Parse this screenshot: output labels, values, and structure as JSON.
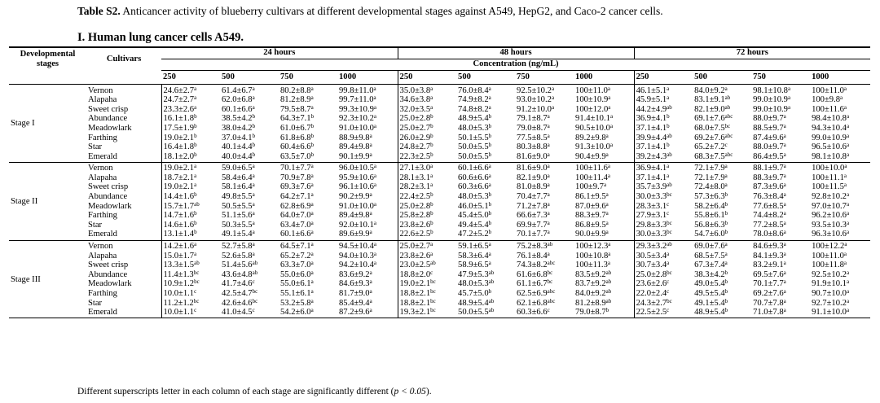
{
  "caption": {
    "label": "Table S2.",
    "text": " Anticancer activity of blueberry cultivars at different developmental stages against A549, HepG2, and Caco-2 cancer cells."
  },
  "section_title": "I. Human lung cancer cells A549.",
  "headers": {
    "developmental_stages": "Developmental stages",
    "cultivars": "Cultivars",
    "times": [
      "24 hours",
      "48 hours",
      "72 hours"
    ],
    "concentration": "Concentration (ng/mL)",
    "doses": [
      "250",
      "500",
      "750",
      "1000",
      "250",
      "500",
      "750",
      "1000",
      "250",
      "500",
      "750",
      "1000"
    ]
  },
  "stages": [
    {
      "name": "Stage I",
      "rows": [
        {
          "cultivar": "Vernon",
          "values": [
            "24.6±2.7^a",
            "61.4±6.7^a",
            "80.2±8.8^a",
            "99.8±11.0^a",
            "35.0±3.8^a",
            "76.0±8.4^a",
            "92.5±10.2^a",
            "100±11.0^a",
            "46.1±5.1^a",
            "84.0±9.2^a",
            "98.1±10.8^a",
            "100±11.0^a"
          ]
        },
        {
          "cultivar": "Alapaha",
          "values": [
            "24.7±2.7^a",
            "62.0±6.8^a",
            "81.2±8.9^a",
            "99.7±11.0^a",
            "34.6±3.8^a",
            "74.9±8.2^a",
            "93.0±10.2^a",
            "100±10.9^a",
            "45.9±5.1^a",
            "83.1±9.1^ab",
            "99.0±10.9^a",
            "100±9.8^a"
          ]
        },
        {
          "cultivar": "Sweet crisp",
          "values": [
            "23.3±2.6^a",
            "60.1±6.6^a",
            "79.5±8.7^a",
            "99.3±10.9^a",
            "32.0±3.5^a",
            "74.8±8.2^a",
            "91.2±10.0^a",
            "100±12.0^a",
            "44.2±4.9^ab",
            "82.1±9.0^ab",
            "99.0±10.9^a",
            "100±11.6^a"
          ]
        },
        {
          "cultivar": "Abundance",
          "values": [
            "16.1±1.8^b",
            "38.5±4.2^b",
            "64.3±7.1^b",
            "92.3±10.2^a",
            "25.0±2.8^b",
            "48.9±5.4^b",
            "79.1±8.7^a",
            "91.4±10.1^a",
            "36.9±4.1^b",
            "69.1±7.6^abc",
            "88.0±9.7^a",
            "98.4±10.8^a"
          ]
        },
        {
          "cultivar": "Meadowlark",
          "values": [
            "17.5±1.9^b",
            "38.0±4.2^b",
            "61.0±6.7^b",
            "91.0±10.0^a",
            "25.0±2.7^b",
            "48.0±5.3^b",
            "79.0±8.7^a",
            "90.5±10.0^a",
            "37.1±4.1^b",
            "68.0±7.5^bc",
            "88.5±9.7^a",
            "94.3±10.4^a"
          ]
        },
        {
          "cultivar": "Farthing",
          "values": [
            "19.0±2.1^b",
            "37.0±4.1^b",
            "61.8±6.8^b",
            "88.9±9.8^a",
            "26.0±2.9^b",
            "50.1±5.5^b",
            "77.5±8.5^a",
            "89.2±9.8^a",
            "39.9±4.4^ab",
            "69.2±7.6^abc",
            "87.4±9.6^a",
            "99.0±10.9^a"
          ]
        },
        {
          "cultivar": "Star",
          "values": [
            "16.4±1.8^b",
            "40.1±4.4^b",
            "60.4±6.6^b",
            "89.4±9.8^a",
            "24.8±2.7^b",
            "50.0±5.5^b",
            "80.3±8.8^a",
            "91.3±10.0^a",
            "37.1±4.1^b",
            "65.2±7.2^c",
            "88.0±9.7^a",
            "96.5±10.6^a"
          ]
        },
        {
          "cultivar": "Emerald",
          "values": [
            "18.1±2.0^b",
            "40.0±4.4^b",
            "63.5±7.0^b",
            "90.1±9.9^a",
            "22.3±2.5^b",
            "50.0±5.5^b",
            "81.6±9.0^a",
            "90.4±9.9^a",
            "39.2±4.3^ab",
            "68.3±7.5^abc",
            "86.4±9.5^a",
            "98.1±10.8^a"
          ]
        }
      ]
    },
    {
      "name": "Stage II",
      "rows": [
        {
          "cultivar": "Vernon",
          "values": [
            "19.0±2.1^a",
            "59.0±6.5^a",
            "70.1±7.7^a",
            "96.0±10.5^a",
            "27.1±3.0^a",
            "60.1±6.6^a",
            "81.6±9.0^a",
            "100±11.6^a",
            "36.9±4.1^a",
            "72.1±7.9^a",
            "88.1±9.7^a",
            "100±10.0^a"
          ]
        },
        {
          "cultivar": "Alapaha",
          "values": [
            "18.7±2.1^a",
            "58.4±6.4^a",
            "70.9±7.8^a",
            "95.9±10.6^a",
            "28.1±3.1^a",
            "60.6±6.6^a",
            "82.1±9.0^a",
            "100±11.4^a",
            "37.1±4.1^a",
            "72.1±7.9^a",
            "88.3±9.7^a",
            "100±11.1^a"
          ]
        },
        {
          "cultivar": "Sweet crisp",
          "values": [
            "19.0±2.1^a",
            "58.1±6.4^a",
            "69.3±7.6^a",
            "96.1±10.6^a",
            "28.2±3.1^a",
            "60.3±6.6^a",
            "81.0±8.9^a",
            "100±9.7^a",
            "35.7±3.9^ab",
            "72.4±8.0^a",
            "87.3±9.6^a",
            "100±11.5^a"
          ]
        },
        {
          "cultivar": "Abundance",
          "values": [
            "14.4±1.6^b",
            "49.8±5.5^a",
            "64.2±7.1^a",
            "90.2±9.9^a",
            "22.4±2.5^b",
            "48.0±5.3^b",
            "70.4±7.7^a",
            "86.1±9.5^a",
            "30.0±3.3^bc",
            "57.3±6.3^b",
            "76.3±8.4^a",
            "92.8±10.2^a"
          ]
        },
        {
          "cultivar": "Meadowlark",
          "values": [
            "15.7±1.7^ab",
            "50.5±5.5^a",
            "62.8±6.9^a",
            "91.0±10.0^a",
            "25.0±2.8^b",
            "46.0±5.1^b",
            "71.2±7.8^a",
            "87.0±9.6^a",
            "28.3±3.1^c",
            "58.2±6.4^b",
            "77.6±8.5^a",
            "97.0±10.7^a"
          ]
        },
        {
          "cultivar": "Farthing",
          "values": [
            "14.7±1.6^b",
            "51.1±5.6^a",
            "64.0±7.0^a",
            "89.4±9.8^a",
            "25.8±2.8^b",
            "45.4±5.0^b",
            "66.6±7.3^a",
            "88.3±9.7^a",
            "27.9±3.1^c",
            "55.8±6.1^b",
            "74.4±8.2^a",
            "96.2±10.6^a"
          ]
        },
        {
          "cultivar": "Star",
          "values": [
            "14.6±1.6^b",
            "50.3±5.5^a",
            "63.4±7.0^a",
            "92.0±10.1^a",
            "23.8±2.6^b",
            "49.4±5.4^b",
            "69.9±7.7^a",
            "86.8±9.5^a",
            "29.8±3.3^bc",
            "56.8±6.3^b",
            "77.2±8.5^a",
            "93.5±10.3^a"
          ]
        },
        {
          "cultivar": "Emerald",
          "values": [
            "13.1±1.4^b",
            "49.1±5.4^a",
            "60.1±6.6^a",
            "89.6±9.9^a",
            "22.6±2.5^b",
            "47.2±5.2^b",
            "70.1±7.7^a",
            "90.0±9.9^a",
            "30.0±3.3^bc",
            "54.7±6.0^b",
            "78.0±8.6^a",
            "96.3±10.6^a"
          ]
        }
      ]
    },
    {
      "name": "Stage III",
      "rows": [
        {
          "cultivar": "Vernon",
          "values": [
            "14.2±1.6^a",
            "52.7±5.8^a",
            "64.5±7.1^a",
            "94.5±10.4^a",
            "25.0±2.7^a",
            "59.1±6.5^a",
            "75.2±8.3^ab",
            "100±12.3^a",
            "29.3±3.2^ab",
            "69.0±7.6^a",
            "84.6±9.3^a",
            "100±12.2^a"
          ]
        },
        {
          "cultivar": "Alapaha",
          "values": [
            "15.0±1.7^a",
            "52.6±5.8^a",
            "65.2±7.2^a",
            "94.0±10.3^a",
            "23.8±2.6^a",
            "58.3±6.4^a",
            "76.1±8.4^a",
            "100±10.8^a",
            "30.5±3.4^a",
            "68.5±7.5^a",
            "84.1±9.3^a",
            "100±11.0^a"
          ]
        },
        {
          "cultivar": "Sweet crisp",
          "values": [
            "13.3±1.5^ab",
            "51.4±5.6^ab",
            "63.3±7.0^a",
            "94.2±10.4^a",
            "23.0±2.5^ab",
            "58.9±6.5^a",
            "74.3±8.2^abc",
            "100±11.3^a",
            "30.7±3.4^a",
            "67.3±7.4^a",
            "83.2±9.1^a",
            "100±11.8^a"
          ]
        },
        {
          "cultivar": "Abundance",
          "values": [
            "11.4±1.3^bc",
            "43.6±4.8^ab",
            "55.0±6.0^a",
            "83.6±9.2^a",
            "18.8±2.0^c",
            "47.9±5.3^ab",
            "61.6±6.8^bc",
            "83.5±9.2^ab",
            "25.0±2.8^bc",
            "38.3±4.2^b",
            "69.5±7.6^a",
            "92.5±10.2^a"
          ]
        },
        {
          "cultivar": "Meadowlark",
          "values": [
            "10.9±1.2^bc",
            "41.7±4.6^c",
            "55.0±6.1^a",
            "84.6±9.3^a",
            "19.0±2.1^bc",
            "48.0±5.3^ab",
            "61.1±6.7^bc",
            "83.7±9.2^ab",
            "23.6±2.6^c",
            "49.0±5.4^b",
            "70.1±7.7^a",
            "91.9±10.1^a"
          ]
        },
        {
          "cultivar": "Farthing",
          "values": [
            "10.0±1.1^c",
            "42.5±4.7^bc",
            "55.1±6.1^a",
            "81.7±9.0^a",
            "18.8±2.1^bc",
            "45.7±5.0^b",
            "62.5±6.9^abc",
            "84.0±9.2^ab",
            "22.0±2.4^c",
            "49.5±5.4^b",
            "69.2±7.6^a",
            "90.7±10.0^a"
          ]
        },
        {
          "cultivar": "Star",
          "values": [
            "11.2±1.2^bc",
            "42.6±4.6^bc",
            "53.2±5.8^a",
            "85.4±9.4^a",
            "18.8±2.1^bc",
            "48.9±5.4^ab",
            "62.1±6.8^abc",
            "81.2±8.9^ab",
            "24.3±2.7^bc",
            "49.1±5.4^b",
            "70.7±7.8^a",
            "92.7±10.2^a"
          ]
        },
        {
          "cultivar": "Emerald",
          "values": [
            "10.0±1.1^c",
            "41.0±4.5^c",
            "54.2±6.0^a",
            "87.2±9.6^a",
            "19.3±2.1^bc",
            "50.0±5.5^ab",
            "60.3±6.6^c",
            "79.0±8.7^b",
            "22.5±2.5^c",
            "48.9±5.4^b",
            "71.0±7.8^a",
            "91.1±10.0^a"
          ]
        }
      ]
    }
  ],
  "footnote": {
    "text": "Different superscripts letter in each column of each stage are significantly different (",
    "p": "p < 0.05",
    "end": ")."
  }
}
